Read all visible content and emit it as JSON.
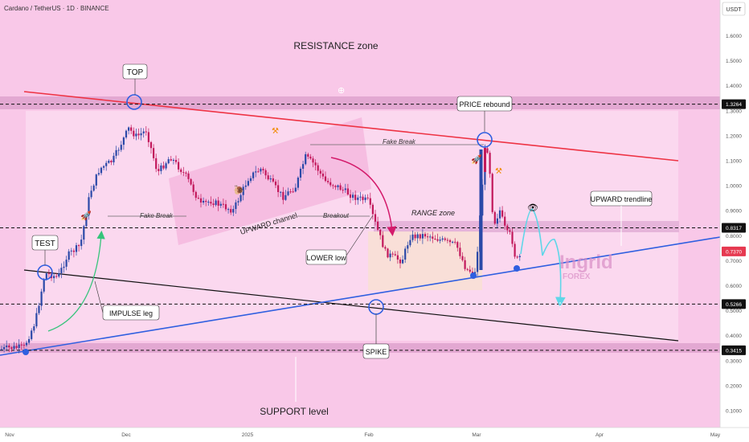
{
  "header": {
    "symbol": "Cardano / TetherUS · 1D · BINANCE",
    "currency": "USDT"
  },
  "watermark": {
    "line1": "Ingrid",
    "line2": "FOREX"
  },
  "colors": {
    "bg": "#f9c8e8",
    "zone": "#e3a8d2",
    "up": "#2b49a8",
    "down": "#c2185b",
    "trend": "#2f5fe0",
    "resistance_line": "#ee3344",
    "support_line": "#111111",
    "impulse": "#35c47a",
    "arrow": "#d41a6b",
    "forecast": "#5fd6e8",
    "price_label": "#e63950"
  },
  "chart_data": {
    "type": "candlestick",
    "x_ticks": [
      "Nov",
      "Dec",
      "2025",
      "Feb",
      "Mar",
      "Apr",
      "May"
    ],
    "y_ticks": [
      "1.6000",
      "1.5000",
      "1.4000",
      "1.3000",
      "1.2000",
      "1.1000",
      "1.0000",
      "0.9000",
      "0.8000",
      "0.7000",
      "0.6000",
      "0.5000",
      "0.4000",
      "0.3000",
      "0.2000",
      "0.1000"
    ],
    "ylim": [
      0.05,
      1.68
    ],
    "horizontal_levels": [
      {
        "value": 1.3264,
        "label": "1.3264"
      },
      {
        "value": 0.8317,
        "label": "0.8317"
      },
      {
        "value": 0.5266,
        "label": "0.5266"
      },
      {
        "value": 0.3415,
        "label": "0.3415"
      }
    ],
    "current_price": {
      "value": 0.737,
      "label": "0.7370"
    },
    "annotations": {
      "resistance": "RESISTANCE zone",
      "top": "TOP",
      "test": "TEST",
      "impulse": "IMPULSE leg",
      "fake_break_1": "Fake Break",
      "fake_break_2": "Fake Break",
      "upward_channel": "UPWARD channel",
      "breakout": "Breakout",
      "lower_low": "LOWER low",
      "range_zone": "RANGE zone",
      "spike": "SPIKE",
      "price_rebound": "PRICE rebound",
      "upward_trendline": "UPWARD trendline",
      "support": "SUPPORT level"
    }
  }
}
